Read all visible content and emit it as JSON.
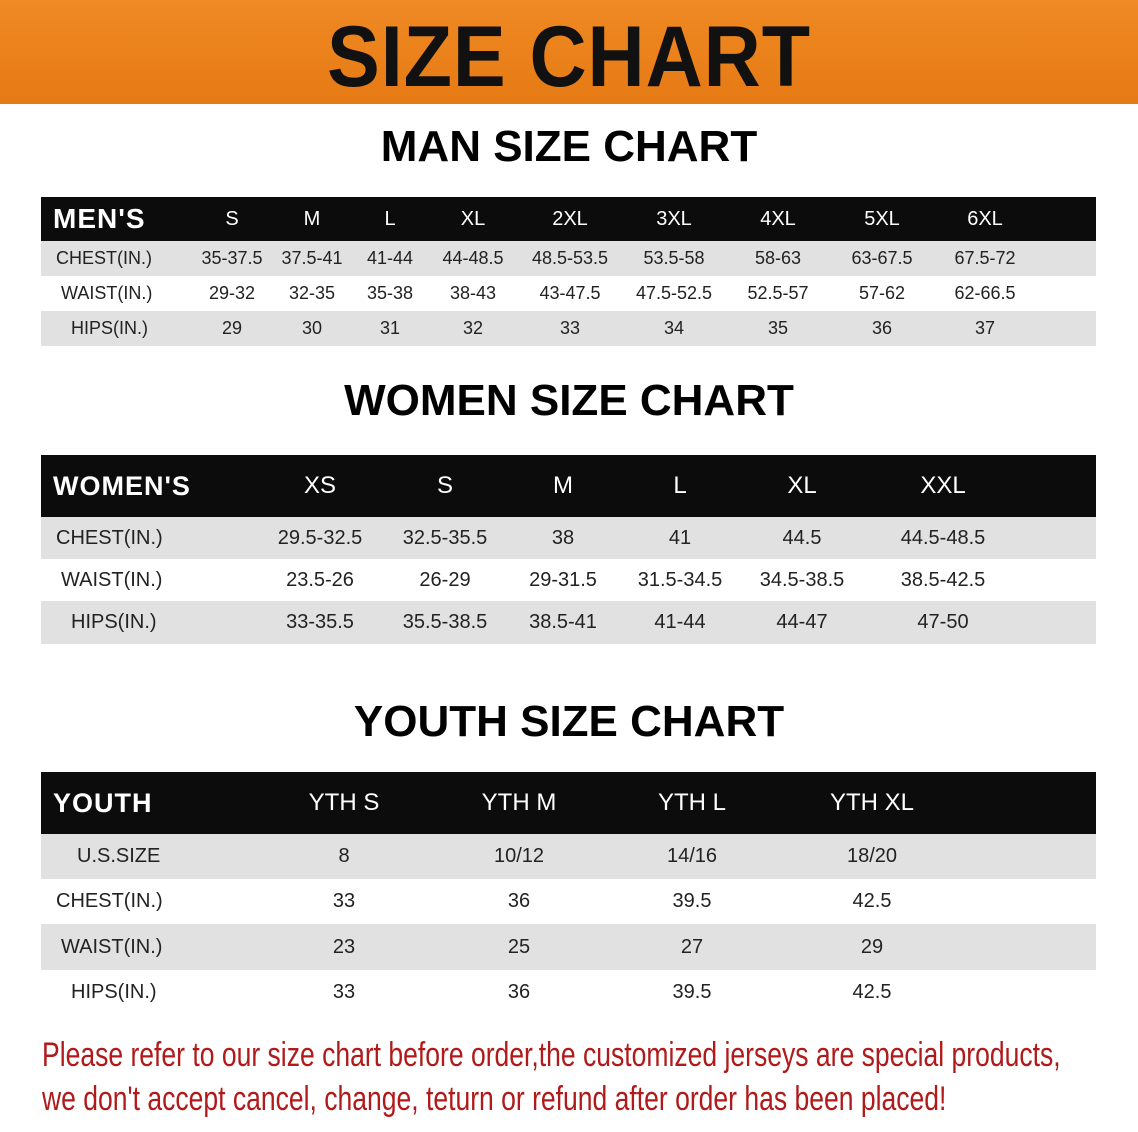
{
  "banner": {
    "title": "SIZE CHART",
    "color": "#ec7f1c"
  },
  "men": {
    "title": "MAN SIZE CHART",
    "header": [
      "MEN'S",
      "S",
      "M",
      "L",
      "XL",
      "2XL",
      "3XL",
      "4XL",
      "5XL",
      "6XL"
    ],
    "rows": [
      [
        "CHEST(IN.)",
        "35-37.5",
        "37.5-41",
        "41-44",
        "44-48.5",
        "48.5-53.5",
        "53.5-58",
        "58-63",
        "63-67.5",
        "67.5-72"
      ],
      [
        "WAIST(IN.)",
        "29-32",
        "32-35",
        "35-38",
        "38-43",
        "43-47.5",
        "47.5-52.5",
        "52.5-57",
        "57-62",
        "62-66.5"
      ],
      [
        "HIPS(IN.)",
        "29",
        "30",
        "31",
        "32",
        "33",
        "34",
        "35",
        "36",
        "37"
      ]
    ]
  },
  "women": {
    "title": "WOMEN SIZE CHART",
    "header": [
      "WOMEN'S",
      "XS",
      "S",
      "M",
      "L",
      "XL",
      "XXL"
    ],
    "rows": [
      [
        "CHEST(IN.)",
        "29.5-32.5",
        "32.5-35.5",
        "38",
        "41",
        "44.5",
        "44.5-48.5"
      ],
      [
        "WAIST(IN.)",
        "23.5-26",
        "26-29",
        "29-31.5",
        "31.5-34.5",
        "34.5-38.5",
        "38.5-42.5"
      ],
      [
        "HIPS(IN.)",
        "33-35.5",
        "35.5-38.5",
        "38.5-41",
        "41-44",
        "44-47",
        "47-50"
      ]
    ]
  },
  "youth": {
    "title": "YOUTH SIZE CHART",
    "header": [
      "YOUTH",
      "YTH S",
      "YTH M",
      "YTH L",
      "YTH XL"
    ],
    "rows": [
      [
        "U.S.SIZE",
        "8",
        "10/12",
        "14/16",
        "18/20"
      ],
      [
        "CHEST(IN.)",
        "33",
        "36",
        "39.5",
        "42.5"
      ],
      [
        "WAIST(IN.)",
        "23",
        "25",
        "27",
        "29"
      ],
      [
        "HIPS(IN.)",
        "33",
        "36",
        "39.5",
        "42.5"
      ]
    ]
  },
  "note": {
    "line1": "Please refer to our size chart before order,the customized jerseys are special products,",
    "line2": "we don't accept cancel, change, teturn or refund after order has been placed!",
    "color": "#b01a1a"
  }
}
